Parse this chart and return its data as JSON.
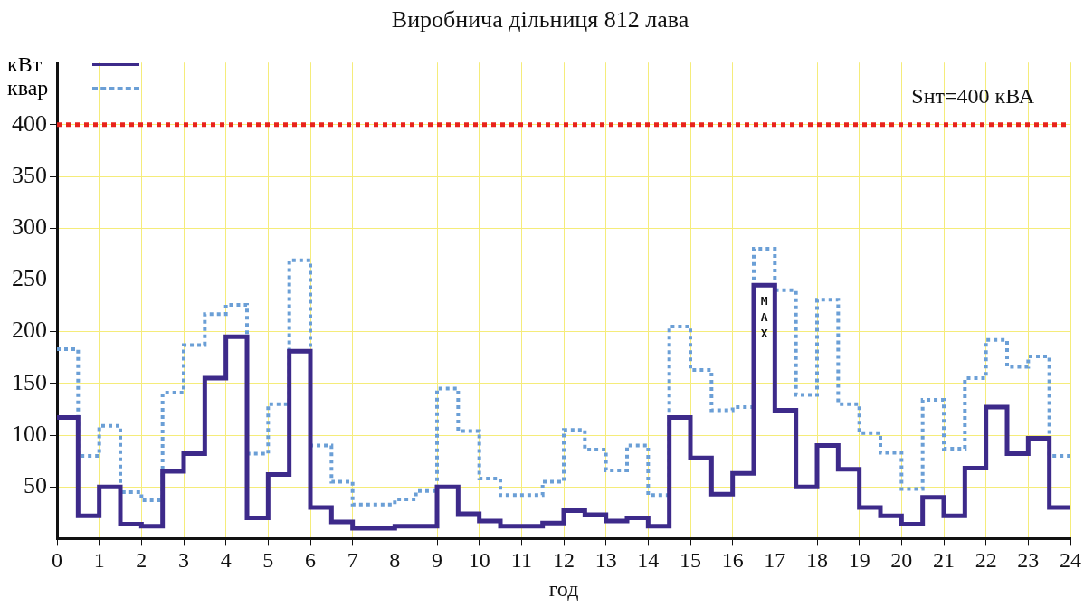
{
  "chart_data": {
    "type": "step",
    "title": "Виробнича дільниця 812 лава",
    "xlabel": "год",
    "x": [
      0,
      0.5,
      1,
      1.5,
      2,
      2.5,
      3,
      3.5,
      4,
      4.5,
      5,
      5.5,
      6,
      6.5,
      7,
      7.5,
      8,
      8.5,
      9,
      9.5,
      10,
      10.5,
      11,
      11.5,
      12,
      12.5,
      13,
      13.5,
      14,
      14.5,
      15,
      15.5,
      16,
      16.5,
      17,
      17.5,
      18,
      18.5,
      19,
      19.5,
      20,
      20.5,
      21,
      21.5,
      22,
      22.5,
      23,
      23.5,
      24
    ],
    "series": [
      {
        "name": "кВт",
        "color": "#3d2a8a",
        "line_style": "solid",
        "values": [
          117,
          22,
          50,
          14,
          12,
          65,
          82,
          155,
          195,
          20,
          62,
          181,
          30,
          16,
          10,
          10,
          12,
          12,
          50,
          24,
          17,
          12,
          12,
          15,
          27,
          23,
          17,
          20,
          12,
          117,
          78,
          43,
          63,
          245,
          124,
          50,
          90,
          67,
          30,
          22,
          14,
          40,
          22,
          68,
          127,
          82,
          97,
          30,
          30
        ]
      },
      {
        "name": "квар",
        "color": "#6b9fd6",
        "line_style": "dotted",
        "values": [
          183,
          80,
          109,
          45,
          37,
          141,
          187,
          217,
          226,
          82,
          130,
          269,
          90,
          55,
          33,
          33,
          38,
          46,
          145,
          104,
          58,
          42,
          42,
          55,
          105,
          86,
          66,
          90,
          42,
          205,
          163,
          124,
          127,
          280,
          240,
          139,
          231,
          130,
          102,
          83,
          48,
          134,
          87,
          155,
          192,
          166,
          176,
          80,
          80
        ]
      }
    ],
    "xlim": [
      0,
      24
    ],
    "xticks": [
      0,
      1,
      2,
      3,
      4,
      5,
      6,
      7,
      8,
      9,
      10,
      11,
      12,
      13,
      14,
      15,
      16,
      17,
      18,
      19,
      20,
      21,
      22,
      23,
      24
    ],
    "ylim": [
      0,
      460
    ],
    "yticks": [
      50,
      100,
      150,
      200,
      250,
      300,
      350,
      400
    ],
    "ref_lines": [
      {
        "axis": "y",
        "value": 400,
        "label": "Sнт=400 кВА",
        "color": "#e8231c",
        "line_style": "dotted"
      }
    ],
    "annotations": [
      "МАХ"
    ],
    "grid": true,
    "legend": "top left",
    "marker": "none"
  }
}
